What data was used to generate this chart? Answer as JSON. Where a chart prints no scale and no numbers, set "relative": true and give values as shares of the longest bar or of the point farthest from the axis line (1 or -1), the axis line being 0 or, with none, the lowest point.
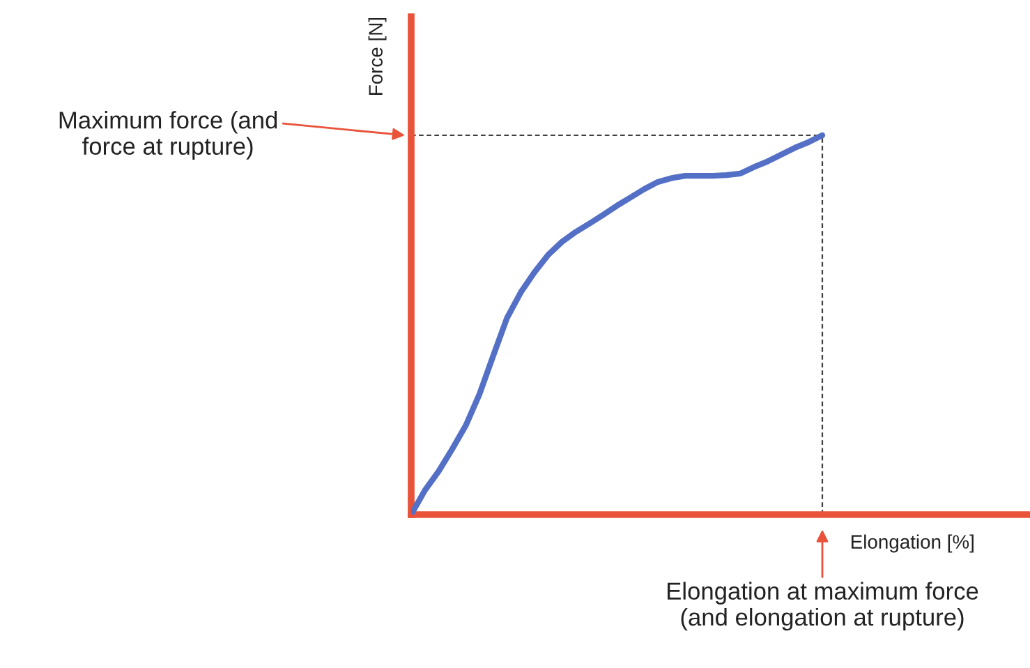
{
  "chart_data": {
    "type": "line",
    "relative": true,
    "xlabel": "Elongation [%]",
    "ylabel": "Force [N]",
    "categories": [
      null,
      null,
      null,
      null,
      null,
      null,
      null,
      null,
      null,
      null,
      null,
      null,
      null,
      null,
      null,
      null,
      null,
      null,
      null,
      null,
      null,
      null,
      null,
      null,
      null,
      null,
      null,
      null,
      null,
      null,
      null
    ],
    "series": [
      {
        "color": "#5470c6",
        "values": [
          0,
          0.064,
          0.114,
          0.173,
          0.236,
          0.319,
          0.42,
          0.519,
          0.586,
          0.639,
          0.685,
          0.719,
          0.745,
          0.767,
          0.79,
          0.814,
          0.836,
          0.858,
          0.877,
          0.887,
          0.893,
          0.893,
          0.893,
          0.895,
          0.899,
          0.916,
          0.931,
          0.949,
          0.967,
          0.982,
          1
        ]
      }
    ],
    "ref_lines": [
      {
        "axis": "y",
        "value": 1,
        "label": "Maximum force (and\nforce at rupture)",
        "color": "#404040",
        "line_style": "dashed"
      }
    ],
    "annotations": [
      "Elongation at maximum force\n(and elongation at rupture)"
    ]
  }
}
